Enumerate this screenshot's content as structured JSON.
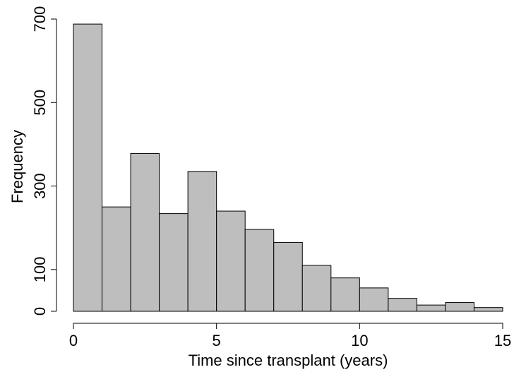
{
  "chart_data": {
    "type": "bar",
    "subtype": "histogram",
    "title": "",
    "xlabel": "Time since transplant (years)",
    "ylabel": "Frequency",
    "xlim": [
      0,
      15
    ],
    "ylim": [
      0,
      700
    ],
    "bins": [
      {
        "x0": 0,
        "x1": 1,
        "value": 688
      },
      {
        "x0": 1,
        "x1": 2,
        "value": 250
      },
      {
        "x0": 2,
        "x1": 3,
        "value": 378
      },
      {
        "x0": 3,
        "x1": 4,
        "value": 234
      },
      {
        "x0": 4,
        "x1": 5,
        "value": 335
      },
      {
        "x0": 5,
        "x1": 6,
        "value": 240
      },
      {
        "x0": 6,
        "x1": 7,
        "value": 196
      },
      {
        "x0": 7,
        "x1": 8,
        "value": 165
      },
      {
        "x0": 8,
        "x1": 9,
        "value": 110
      },
      {
        "x0": 9,
        "x1": 10,
        "value": 80
      },
      {
        "x0": 10,
        "x1": 11,
        "value": 56
      },
      {
        "x0": 11,
        "x1": 12,
        "value": 31
      },
      {
        "x0": 12,
        "x1": 13,
        "value": 15
      },
      {
        "x0": 13,
        "x1": 14,
        "value": 21
      },
      {
        "x0": 14,
        "x1": 15,
        "value": 9
      }
    ],
    "x_ticks": [
      "0",
      "5",
      "10",
      "15"
    ],
    "y_ticks": [
      "0",
      "100",
      "300",
      "500",
      "700"
    ],
    "grid": false,
    "colors": {
      "bar_fill": "#bebebe",
      "bar_stroke": "#000000"
    }
  }
}
